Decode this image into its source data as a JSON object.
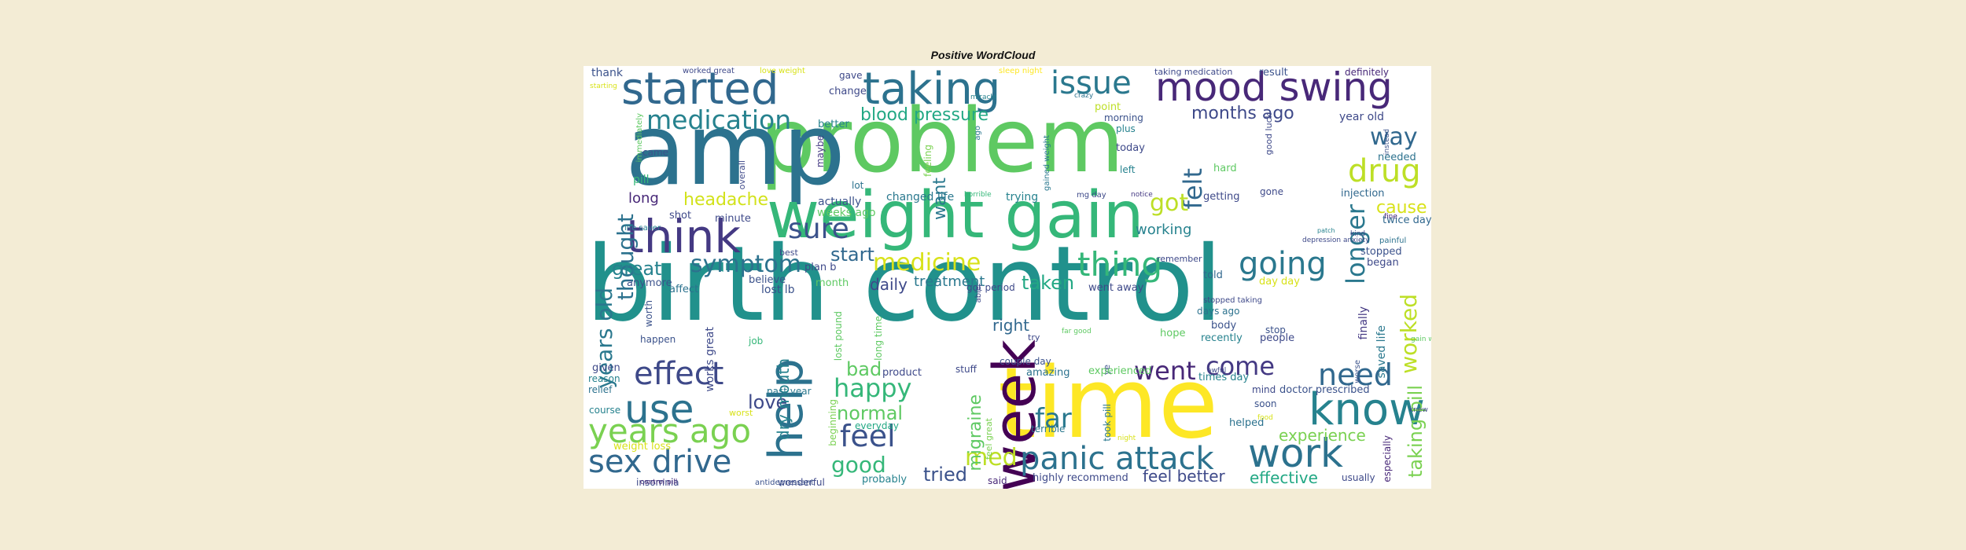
{
  "title": "Positive WordCloud",
  "words": [
    {
      "text": "birth control",
      "color": "#21918c"
    },
    {
      "text": "problem",
      "color": "#5ec962"
    },
    {
      "text": "amp",
      "color": "#2c728e"
    },
    {
      "text": "time",
      "color": "#fde725"
    },
    {
      "text": "weight gain",
      "color": "#35b779"
    },
    {
      "text": "week",
      "color": "#440154"
    },
    {
      "text": "started",
      "color": "#31688e"
    },
    {
      "text": "taking",
      "color": "#2c728e"
    },
    {
      "text": "issue",
      "color": "#2a788e"
    },
    {
      "text": "mood swing",
      "color": "#482878"
    },
    {
      "text": "medication",
      "color": "#26828e"
    },
    {
      "text": "blood pressure",
      "color": "#22a884"
    },
    {
      "text": "months ago",
      "color": "#3e4989"
    },
    {
      "text": "drug",
      "color": "#bddf26"
    },
    {
      "text": "way",
      "color": "#31688e"
    },
    {
      "text": "think",
      "color": "#443983"
    },
    {
      "text": "sure",
      "color": "#3b528b"
    },
    {
      "text": "years old",
      "color": "#2a788e"
    },
    {
      "text": "thought",
      "color": "#2c728e"
    },
    {
      "text": "felt",
      "color": "#31688e"
    },
    {
      "text": "longer",
      "color": "#2a788e"
    },
    {
      "text": "got",
      "color": "#bddf26"
    },
    {
      "text": "headache",
      "color": "#d2e21b"
    },
    {
      "text": "symptom",
      "color": "#2c728e"
    },
    {
      "text": "medicine",
      "color": "#d8e219"
    },
    {
      "text": "thing",
      "color": "#35b779"
    },
    {
      "text": "going",
      "color": "#2a788e"
    },
    {
      "text": "worked",
      "color": "#bddf26"
    },
    {
      "text": "cause",
      "color": "#d8e219"
    },
    {
      "text": "great",
      "color": "#26828e"
    },
    {
      "text": "start",
      "color": "#31688e"
    },
    {
      "text": "taken",
      "color": "#22a884"
    },
    {
      "text": "help",
      "color": "#2c728e"
    },
    {
      "text": "effect",
      "color": "#3e4989"
    },
    {
      "text": "use",
      "color": "#2c728e"
    },
    {
      "text": "years ago",
      "color": "#7ad151"
    },
    {
      "text": "sex drive",
      "color": "#31688e"
    },
    {
      "text": "happy",
      "color": "#35b779"
    },
    {
      "text": "love",
      "color": "#3e4989"
    },
    {
      "text": "feel",
      "color": "#3b528b"
    },
    {
      "text": "good",
      "color": "#35b779"
    },
    {
      "text": "normal",
      "color": "#5ec962"
    },
    {
      "text": "bad",
      "color": "#5ec962"
    },
    {
      "text": "went",
      "color": "#482878"
    },
    {
      "text": "come",
      "color": "#443983"
    },
    {
      "text": "need",
      "color": "#31688e"
    },
    {
      "text": "far",
      "color": "#2a788e"
    },
    {
      "text": "med",
      "color": "#bddf26"
    },
    {
      "text": "panic attack",
      "color": "#2c728e"
    },
    {
      "text": "know",
      "color": "#26828e"
    },
    {
      "text": "work",
      "color": "#2c728e"
    },
    {
      "text": "experience",
      "color": "#7ad151"
    },
    {
      "text": "tried",
      "color": "#3b528b"
    },
    {
      "text": "feel better",
      "color": "#3e4989"
    },
    {
      "text": "effective",
      "color": "#22a884"
    },
    {
      "text": "taking pill",
      "color": "#7ad151"
    },
    {
      "text": "migraine",
      "color": "#5ec962"
    },
    {
      "text": "daily",
      "color": "#3e4989"
    },
    {
      "text": "treatment",
      "color": "#2a788e"
    },
    {
      "text": "want",
      "color": "#2a788e"
    },
    {
      "text": "working",
      "color": "#26828e"
    },
    {
      "text": "right",
      "color": "#31688e"
    },
    {
      "text": "long",
      "color": "#482878"
    },
    {
      "text": "dry mouth",
      "color": "#26828e"
    },
    {
      "text": "works great",
      "color": "#3e4989"
    },
    {
      "text": "thank",
      "color": "#3b528b"
    },
    {
      "text": "change",
      "color": "#3e4989"
    },
    {
      "text": "gave",
      "color": "#3e4989"
    },
    {
      "text": "result",
      "color": "#3b528b"
    },
    {
      "text": "definitely",
      "color": "#482878"
    },
    {
      "text": "year old",
      "color": "#3e4989"
    },
    {
      "text": "needed",
      "color": "#2c728e"
    },
    {
      "text": "injection",
      "color": "#31688e"
    },
    {
      "text": "twice day",
      "color": "#31688e"
    },
    {
      "text": "stopped",
      "color": "#3b528b"
    },
    {
      "text": "began",
      "color": "#3e4989"
    },
    {
      "text": "saved life",
      "color": "#2a788e"
    },
    {
      "text": "finally",
      "color": "#443983"
    },
    {
      "text": "changed life",
      "color": "#2a788e"
    },
    {
      "text": "trying",
      "color": "#26828e"
    },
    {
      "text": "actually",
      "color": "#3b528b"
    },
    {
      "text": "weeks ago",
      "color": "#5ec962"
    },
    {
      "text": "minute",
      "color": "#3e4989"
    },
    {
      "text": "shot",
      "color": "#3e4989"
    },
    {
      "text": "pill",
      "color": "#35b779"
    },
    {
      "text": "better",
      "color": "#26828e"
    },
    {
      "text": "lost lb",
      "color": "#3b528b"
    },
    {
      "text": "anymore",
      "color": "#3b528b"
    },
    {
      "text": "affect",
      "color": "#2c728e"
    },
    {
      "text": "plan b",
      "color": "#3e4989"
    },
    {
      "text": "month",
      "color": "#5ec962"
    },
    {
      "text": "believe",
      "color": "#3b528b"
    },
    {
      "text": "told",
      "color": "#31688e"
    },
    {
      "text": "day day",
      "color": "#d8e219"
    },
    {
      "text": "days ago",
      "color": "#2c728e"
    },
    {
      "text": "body",
      "color": "#3b528b"
    },
    {
      "text": "recently",
      "color": "#26828e"
    },
    {
      "text": "people",
      "color": "#3e4989"
    },
    {
      "text": "hope",
      "color": "#5ec962"
    },
    {
      "text": "went away",
      "color": "#3e4989"
    },
    {
      "text": "getting",
      "color": "#3e4989"
    },
    {
      "text": "gone",
      "color": "#3e4989"
    },
    {
      "text": "hard",
      "color": "#5ec962"
    },
    {
      "text": "today",
      "color": "#3e4989"
    },
    {
      "text": "left",
      "color": "#26828e"
    },
    {
      "text": "morning",
      "color": "#3b528b"
    },
    {
      "text": "plus",
      "color": "#26828e"
    },
    {
      "text": "point",
      "color": "#bddf26"
    },
    {
      "text": "product",
      "color": "#3e4989"
    },
    {
      "text": "amazing",
      "color": "#2c728e"
    },
    {
      "text": "couple day",
      "color": "#3b528b"
    },
    {
      "text": "highly recommend",
      "color": "#3e4989"
    },
    {
      "text": "doctor prescribed",
      "color": "#3b528b"
    },
    {
      "text": "times day",
      "color": "#26828e"
    },
    {
      "text": "helped",
      "color": "#2c728e"
    },
    {
      "text": "mind",
      "color": "#3e4989"
    },
    {
      "text": "soon",
      "color": "#3b528b"
    },
    {
      "text": "terrible",
      "color": "#2a788e"
    },
    {
      "text": "took pill",
      "color": "#2a788e"
    },
    {
      "text": "probably",
      "color": "#26828e"
    },
    {
      "text": "said",
      "color": "#482878"
    },
    {
      "text": "usually",
      "color": "#3e4989"
    },
    {
      "text": "especially",
      "color": "#482878"
    },
    {
      "text": "wonderful",
      "color": "#3e4989"
    },
    {
      "text": "insomnia",
      "color": "#3e4989"
    },
    {
      "text": "weight loss",
      "color": "#d8e219"
    },
    {
      "text": "course",
      "color": "#26828e"
    },
    {
      "text": "relief",
      "color": "#2c728e"
    },
    {
      "text": "reason",
      "color": "#26828e"
    },
    {
      "text": "given",
      "color": "#3e4989"
    },
    {
      "text": "happen",
      "color": "#3b528b"
    },
    {
      "text": "job",
      "color": "#35b779"
    },
    {
      "text": "past year",
      "color": "#2a788e"
    },
    {
      "text": "lost pound",
      "color": "#5ec962"
    },
    {
      "text": "long time",
      "color": "#5ec962"
    },
    {
      "text": "feel great",
      "color": "#7ad151"
    },
    {
      "text": "everyday",
      "color": "#22a884"
    },
    {
      "text": "beginning",
      "color": "#7ad151"
    },
    {
      "text": "worth",
      "color": "#3b528b"
    },
    {
      "text": "came",
      "color": "#3b528b"
    },
    {
      "text": "maybe",
      "color": "#443983"
    },
    {
      "text": "overall",
      "color": "#3e4989"
    },
    {
      "text": "feeling",
      "color": "#7ad151"
    },
    {
      "text": "lot",
      "color": "#2c728e"
    },
    {
      "text": "best",
      "color": "#3e4989"
    },
    {
      "text": "immediately",
      "color": "#5ec962"
    },
    {
      "text": "crazy",
      "color": "#2c728e"
    },
    {
      "text": "gained weight",
      "color": "#2a788e"
    },
    {
      "text": "remember",
      "color": "#3e4989"
    },
    {
      "text": "good luck",
      "color": "#3e4989"
    },
    {
      "text": "fine",
      "color": "#482878"
    },
    {
      "text": "life saver",
      "color": "#26828e"
    },
    {
      "text": "painful",
      "color": "#2c728e"
    },
    {
      "text": "kind",
      "color": "#3e4989"
    },
    {
      "text": "mg day",
      "color": "#3e4989"
    },
    {
      "text": "notice",
      "color": "#443983"
    },
    {
      "text": "instead",
      "color": "#3b528b"
    },
    {
      "text": "taking medication",
      "color": "#3e4989"
    },
    {
      "text": "worked great",
      "color": "#3e4989"
    },
    {
      "text": "love weight",
      "color": "#d8e219"
    },
    {
      "text": "sleep night",
      "color": "#fde725"
    },
    {
      "text": "stopped taking",
      "color": "#3e4989"
    },
    {
      "text": "depression anxiety",
      "color": "#3e4989"
    },
    {
      "text": "control pill",
      "color": "#482878"
    },
    {
      "text": "antidepressant",
      "color": "#3b528b"
    },
    {
      "text": "worst",
      "color": "#d8e219"
    },
    {
      "text": "starting",
      "color": "#d8e219"
    },
    {
      "text": "ago",
      "color": "#2a788e"
    },
    {
      "text": "miracle",
      "color": "#26828e"
    },
    {
      "text": "horrible",
      "color": "#35b779"
    },
    {
      "text": "able",
      "color": "#3e4989"
    },
    {
      "text": "got period",
      "color": "#3e4989"
    },
    {
      "text": "try",
      "color": "#3e4989"
    },
    {
      "text": "far good",
      "color": "#5ec962"
    },
    {
      "text": "stuff",
      "color": "#3e4989"
    },
    {
      "text": "ye",
      "color": "#3b528b"
    },
    {
      "text": "experienced",
      "color": "#5ec962"
    },
    {
      "text": "stop",
      "color": "#3b528b"
    },
    {
      "text": "food",
      "color": "#d8e219"
    },
    {
      "text": "night",
      "color": "#d8e219"
    },
    {
      "text": "awful",
      "color": "#3e4989"
    },
    {
      "text": "worse",
      "color": "#3b528b"
    },
    {
      "text": "gain weight",
      "color": "#5ec962"
    },
    {
      "text": "patch",
      "color": "#26828e"
    },
    {
      "text": "knew",
      "color": "#3e4989"
    },
    {
      "text": "hoping",
      "color": "#26828e"
    }
  ]
}
